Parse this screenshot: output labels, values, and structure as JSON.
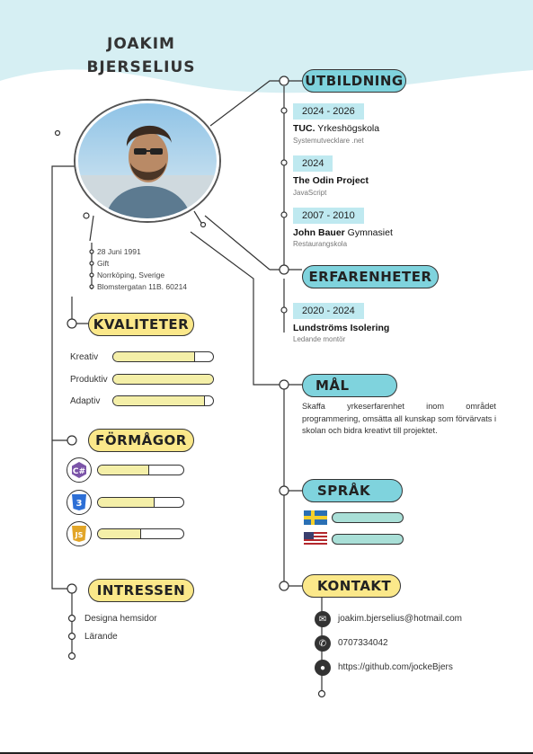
{
  "header": {
    "first_name": "JOAKIM",
    "last_name": "BJERSELIUS"
  },
  "personal": {
    "items": [
      "28 Juni 1991",
      "Gift",
      "Norrköping, Sverige",
      "Blomstergatan 11B.  60214"
    ]
  },
  "sections": {
    "utbildning": "UTBILDNING",
    "erfarenheter": "ERFARENHETER",
    "mal": "MÅL",
    "sprak": "SPRÅK",
    "kontakt": "KONTAKT",
    "kvaliteter": "KVALITETER",
    "formagor": "FÖRMÅGOR",
    "intressen": "INTRESSEN"
  },
  "education": [
    {
      "date": "2024 - 2026",
      "title": "TUC.",
      "title_rest": " Yrkeshögskola",
      "sub": "Systemutvecklare .net"
    },
    {
      "date": "2024",
      "title": "The Odin Project",
      "title_rest": "",
      "sub": "JavaScript"
    },
    {
      "date": "2007 - 2010",
      "title": "John Bauer",
      "title_rest": " Gymnasiet",
      "sub": "Restaurangskola"
    }
  ],
  "experience": [
    {
      "date": "2020 - 2024",
      "title": "Lundströms Isolering",
      "sub": "Ledande montör"
    }
  ],
  "goal": {
    "text": "Skaffa yrkeserfarenhet inom området programmering, omsätta all kunskap som förvärvats i skolan och bidra kreativt till projektet."
  },
  "qualities": [
    {
      "label": "Kreativ",
      "level": 0.82
    },
    {
      "label": "Produktiv",
      "level": 1.0
    },
    {
      "label": "Adaptiv",
      "level": 0.92
    }
  ],
  "skills": [
    {
      "icon": "csharp-icon",
      "glyph": "C#",
      "level": 0.6
    },
    {
      "icon": "css3-icon",
      "glyph": "3",
      "level": 0.66
    },
    {
      "icon": "javascript-icon",
      "glyph": "JS",
      "level": 0.5
    }
  ],
  "languages": [
    {
      "flag": "sweden-flag-icon",
      "level": 1.0
    },
    {
      "flag": "usa-flag-icon",
      "level": 1.0
    }
  ],
  "contact": {
    "email": "joakim.bjerselius@hotmail.com",
    "phone": "0707334042",
    "github": "https://github.com/jockeBjers"
  },
  "interests": [
    "Designa hemsidor",
    "Lärande"
  ],
  "colors": {
    "header_bg": "#d6eff3",
    "accent_blue": "#7fd3dd",
    "accent_yellow": "#fbe88a",
    "date_bg": "#bfe9f0",
    "bar_fill": "#f4efa8",
    "lang_bar": "#a9dfd7"
  }
}
